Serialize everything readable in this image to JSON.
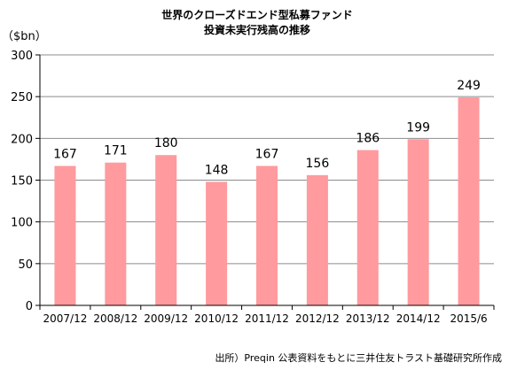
{
  "chart_data": {
    "type": "bar",
    "title": [
      "世界のクローズドエンド型私募ファンド",
      "投資未実行残高の推移"
    ],
    "unit_label": "（$bn）",
    "categories": [
      "2007/12",
      "2008/12",
      "2009/12",
      "2010/12",
      "2011/12",
      "2012/12",
      "2013/12",
      "2014/12",
      "2015/6"
    ],
    "values": [
      167,
      171,
      180,
      148,
      167,
      156,
      186,
      199,
      249
    ],
    "ylim": [
      0,
      300
    ],
    "yticks": [
      0,
      50,
      100,
      150,
      200,
      250,
      300
    ],
    "grid": true,
    "bar_color": "#ff9a9e",
    "gridline_color": "#8c8c8c",
    "source_note": "出所）Preqin 公表資料をもとに三井住友トラスト基礎研究所作成"
  }
}
